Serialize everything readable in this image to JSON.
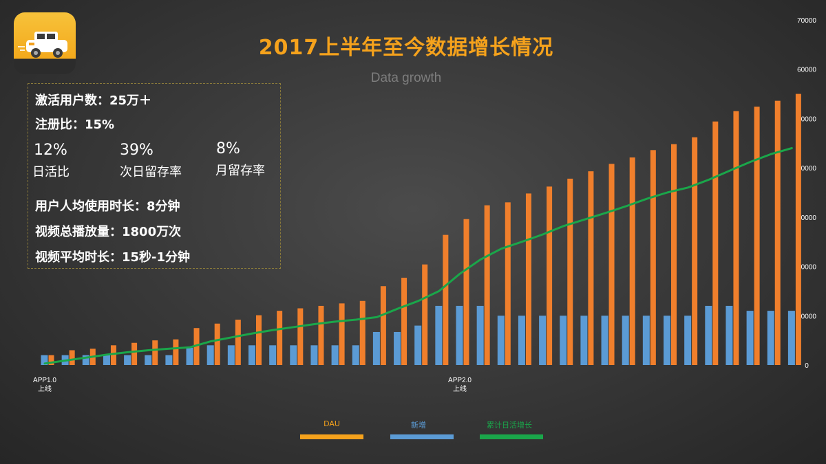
{
  "title": "2017上半年至今数据增长情况",
  "subtitle": "Data growth",
  "stats": {
    "active_users": "激活用户数：25万＋",
    "reg_ratio": "注册比：15%",
    "dau_ratio_value": "12%",
    "dau_ratio_label": "日活比",
    "next_day_value": "39%",
    "next_day_label": "次日留存率",
    "monthly_value": "8%",
    "monthly_label": "月留存率",
    "avg_time": "用户人均使用时长：8分钟",
    "total_plays": "视频总播放量：1800万次",
    "avg_video": "视频平均时长：15秒-1分钟"
  },
  "markers": [
    {
      "index": 0,
      "line1": "APP1.0",
      "line2": "上线"
    },
    {
      "index": 20,
      "line1": "APP2.0",
      "line2": "上线"
    }
  ],
  "colors": {
    "dau": "#f07f2c",
    "new": "#5b9bd5",
    "cum": "#1aa64a",
    "axis_text": "#ffffff"
  },
  "chart_data": {
    "type": "bar",
    "title": "2017上半年至今数据增长情况",
    "subtitle": "Data growth",
    "ylim": [
      0,
      70000
    ],
    "yticks": [
      0,
      10000,
      20000,
      30000,
      40000,
      50000,
      60000,
      70000
    ],
    "y_axis_side": "right",
    "grid": false,
    "legend_position": "bottom-center",
    "series": [
      {
        "name": "DAU",
        "type": "bar",
        "values": [
          2000,
          3000,
          3300,
          4000,
          4500,
          5000,
          5200,
          7500,
          8400,
          9200,
          10100,
          11000,
          11500,
          12000,
          12500,
          13000,
          16000,
          17700,
          20400,
          26400,
          29600,
          32400,
          33000,
          34800,
          36200,
          37800,
          39300,
          40800,
          42100,
          43600,
          44800,
          46200,
          49400,
          51500,
          52400,
          53600,
          55000
        ]
      },
      {
        "name": "新增",
        "type": "bar",
        "values": [
          2000,
          2000,
          2000,
          2000,
          2000,
          2000,
          2000,
          3500,
          4000,
          4000,
          4000,
          4000,
          4000,
          4000,
          4000,
          4000,
          6700,
          6700,
          8000,
          12000,
          12000,
          12000,
          10000,
          10000,
          10000,
          10000,
          10000,
          10000,
          10000,
          10000,
          10000,
          10000,
          12000,
          12000,
          11000,
          11000,
          11000
        ]
      },
      {
        "name": "累计日活增长",
        "type": "line",
        "values": [
          300,
          900,
          1500,
          2100,
          2600,
          3000,
          3300,
          3600,
          4800,
          5600,
          6400,
          7100,
          7700,
          8300,
          8800,
          9200,
          9700,
          11400,
          13000,
          15000,
          18500,
          21400,
          23600,
          25000,
          26500,
          28200,
          29500,
          30800,
          32200,
          33700,
          35000,
          36000,
          37600,
          39400,
          41200,
          42800,
          44000
        ]
      }
    ]
  },
  "legend": [
    {
      "label": "DAU",
      "color": "#f5a21c"
    },
    {
      "label": "新增",
      "color": "#5b9bd5"
    },
    {
      "label": "累计日活增长",
      "color": "#1aa64a"
    }
  ]
}
